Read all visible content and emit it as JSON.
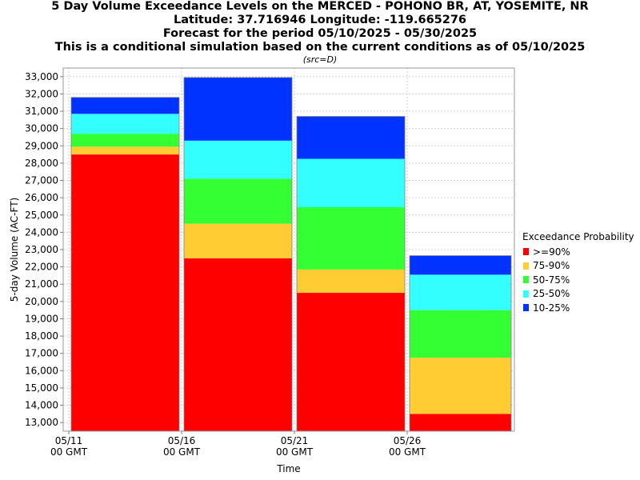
{
  "titles": {
    "line1": "5 Day Volume Exceedance Levels on the MERCED - POHONO BR, AT, YOSEMITE, NR",
    "line2": "Latitude: 37.716946 Longitude: -119.665276",
    "line3": "Forecast for the period 05/10/2025 - 05/30/2025",
    "line4": "This is a conditional simulation based on the current conditions as of 05/10/2025",
    "src": "(src=D)"
  },
  "legend": {
    "title": "Exceedance Probability",
    "items": [
      {
        "label": ">=90%",
        "color": "#ff0000"
      },
      {
        "label": "75-90%",
        "color": "#ffcc33"
      },
      {
        "label": "50-75%",
        "color": "#33ff33"
      },
      {
        "label": "25-50%",
        "color": "#33ffff"
      },
      {
        "label": "10-25%",
        "color": "#0033ff"
      }
    ]
  },
  "chart_data": {
    "type": "bar",
    "stacked": true,
    "xlabel": "Time",
    "ylabel": "5-day Volume (AC-FT)",
    "ylim": [
      12500,
      33500
    ],
    "yticks": [
      13000,
      14000,
      15000,
      16000,
      17000,
      18000,
      19000,
      20000,
      21000,
      22000,
      23000,
      24000,
      25000,
      26000,
      27000,
      28000,
      29000,
      30000,
      31000,
      32000,
      33000
    ],
    "ytick_labels": [
      "13,000",
      "14,000",
      "15,000",
      "16,000",
      "17,000",
      "18,000",
      "19,000",
      "20,000",
      "21,000",
      "22,000",
      "23,000",
      "24,000",
      "25,000",
      "26,000",
      "27,000",
      "28,000",
      "29,000",
      "30,000",
      "31,000",
      "32,000",
      "33,000"
    ],
    "x_ticks": [
      {
        "date": "05/11",
        "label": [
          "05/11",
          "00 GMT"
        ]
      },
      {
        "date": "05/16",
        "label": [
          "05/16",
          "00 GMT"
        ]
      },
      {
        "date": "05/21",
        "label": [
          "05/21",
          "00 GMT"
        ]
      },
      {
        "date": "05/26",
        "label": [
          "05/26",
          "00 GMT"
        ]
      }
    ],
    "x_range": [
      "05/10",
      "05/30"
    ],
    "grid": true,
    "legend_position": "right",
    "periods": [
      {
        "start": "05/11",
        "end": "05/16",
        "levels": [
          28500,
          28950,
          29700,
          30850,
          31800
        ]
      },
      {
        "start": "05/16",
        "end": "05/21",
        "levels": [
          22500,
          24500,
          27100,
          29300,
          32950
        ]
      },
      {
        "start": "05/21",
        "end": "05/26",
        "levels": [
          20500,
          21850,
          25450,
          28250,
          30700
        ]
      },
      {
        "start": "05/26",
        "end": "05/30",
        "levels": [
          13500,
          16750,
          19500,
          21550,
          22650
        ]
      }
    ]
  }
}
